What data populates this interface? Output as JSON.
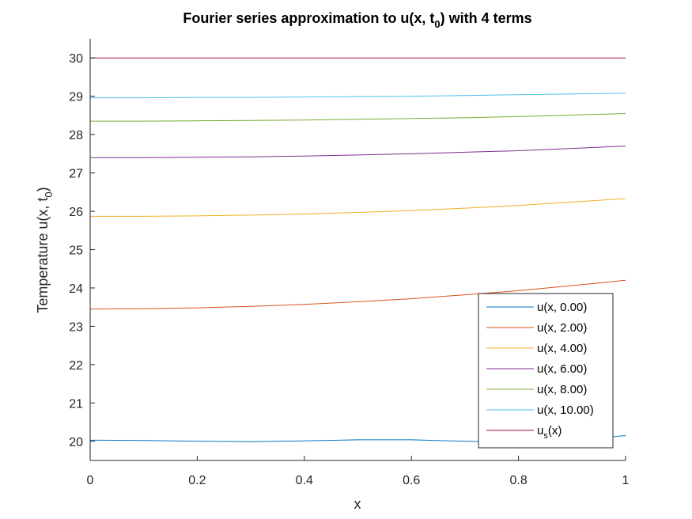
{
  "chart_data": {
    "type": "line",
    "title": "Fourier series approximation to u(x, t",
    "title_sub": "0",
    "title_tail": ") with 4 terms",
    "xlabel": "x",
    "ylabel": "Temperature u(x, t",
    "ylabel_sub": "0",
    "ylabel_tail": ")",
    "xlim": [
      0,
      1
    ],
    "ylim": [
      19.5,
      30.5
    ],
    "xticks": [
      0,
      0.2,
      0.4,
      0.6,
      0.8,
      1
    ],
    "xtick_labels": [
      "0",
      "0.2",
      "0.4",
      "0.6",
      "0.8",
      "1"
    ],
    "yticks": [
      20,
      21,
      22,
      23,
      24,
      25,
      26,
      27,
      28,
      29,
      30
    ],
    "ytick_labels": [
      "20",
      "21",
      "22",
      "23",
      "24",
      "25",
      "26",
      "27",
      "28",
      "29",
      "30"
    ],
    "grid": false,
    "legend_position": "bottom-right",
    "x": [
      0,
      0.1,
      0.2,
      0.3,
      0.4,
      0.5,
      0.6,
      0.7,
      0.8,
      0.9,
      1.0
    ],
    "series": [
      {
        "name": "u(x, 0.00)",
        "color": "#0072BD",
        "values": [
          20.03,
          20.02,
          20.0,
          19.99,
          20.01,
          20.04,
          20.04,
          20.0,
          19.97,
          20.02,
          20.15
        ]
      },
      {
        "name": "u(x, 2.00)",
        "color": "#D95319",
        "values": [
          23.45,
          23.46,
          23.48,
          23.52,
          23.57,
          23.64,
          23.72,
          23.82,
          23.93,
          24.06,
          24.2
        ]
      },
      {
        "name": "u(x, 4.00)",
        "color": "#EDB120",
        "values": [
          25.87,
          25.87,
          25.88,
          25.9,
          25.93,
          25.97,
          26.02,
          26.08,
          26.15,
          26.24,
          26.33
        ]
      },
      {
        "name": "u(x, 6.00)",
        "color": "#7E2F8E",
        "values": [
          27.4,
          27.4,
          27.41,
          27.42,
          27.44,
          27.47,
          27.5,
          27.54,
          27.58,
          27.64,
          27.7
        ]
      },
      {
        "name": "u(x, 8.00)",
        "color": "#77AC30",
        "values": [
          28.35,
          28.35,
          28.36,
          28.37,
          28.38,
          28.4,
          28.42,
          28.44,
          28.47,
          28.51,
          28.55
        ]
      },
      {
        "name": "u(x, 10.00)",
        "color": "#4DBEEE",
        "values": [
          28.96,
          28.96,
          28.97,
          28.97,
          28.98,
          28.99,
          29.0,
          29.02,
          29.04,
          29.06,
          29.08
        ]
      },
      {
        "name": "u",
        "name_sub": "s",
        "name_tail": "(x)",
        "color": "#A2142F",
        "values": [
          30,
          30,
          30,
          30,
          30,
          30,
          30,
          30,
          30,
          30,
          30
        ]
      }
    ]
  }
}
